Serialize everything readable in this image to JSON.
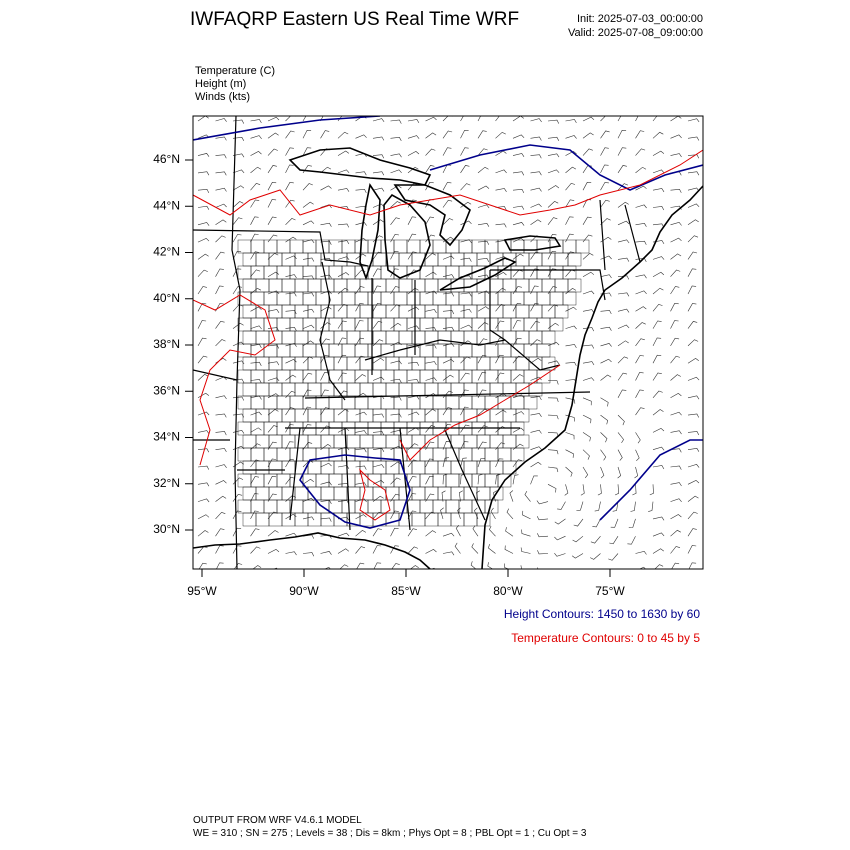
{
  "header": {
    "title": "IWFAQRP Eastern US Real Time WRF",
    "init": "Init: 2025-07-03_00:00:00",
    "valid": "Valid: 2025-07-08_09:00:00"
  },
  "fields": [
    "Temperature   (C)",
    "Height   (m)",
    "Winds   (kts)"
  ],
  "map": {
    "lon_labels": [
      "95°W",
      "90°W",
      "85°W",
      "80°W",
      "75°W"
    ],
    "lat_labels": [
      "46°N",
      "44°N",
      "42°N",
      "40°N",
      "38°N",
      "36°N",
      "34°N",
      "32°N",
      "30°N"
    ]
  },
  "legend": {
    "height": "Height Contours: 1450 to 1630 by 60",
    "temperature": "Temperature Contours: 0 to 45 by 5"
  },
  "footer": [
    "OUTPUT FROM WRF V4.6.1 MODEL",
    "WE = 310 ; SN = 275 ; Levels = 38 ; Dis = 8km ; Phys Opt = 8 ; PBL Opt = 1 ; Cu Opt = 3"
  ]
}
